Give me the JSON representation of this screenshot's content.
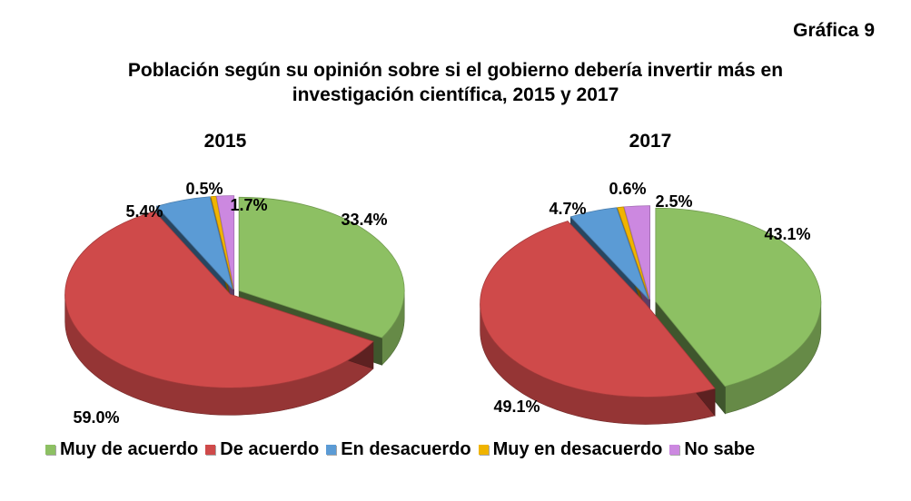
{
  "header": {
    "graph_label": "Gráfica 9",
    "title_line1": "Población según su opinión sobre si el gobierno debería invertir más en",
    "title_line2": "investigación científica, 2015 y 2017"
  },
  "chart_data": [
    {
      "type": "pie",
      "title": "2015",
      "categories": [
        "Muy de acuerdo",
        "De acuerdo",
        "En desacuerdo",
        "Muy en desacuerdo",
        "No sabe"
      ],
      "values": [
        33.4,
        59.0,
        5.4,
        0.5,
        1.7
      ],
      "labels": [
        "33.4%",
        "59.0%",
        "5.4%",
        "0.5%",
        "1.7%"
      ],
      "colors": [
        "#8dc063",
        "#cf4a4a",
        "#5b9bd5",
        "#f0b400",
        "#cc88e0"
      ],
      "legend": "bottom"
    },
    {
      "type": "pie",
      "title": "2017",
      "categories": [
        "Muy de acuerdo",
        "De acuerdo",
        "En desacuerdo",
        "Muy en desacuerdo",
        "No sabe"
      ],
      "values": [
        43.1,
        49.1,
        4.7,
        0.6,
        2.5
      ],
      "labels": [
        "43.1%",
        "49.1%",
        "4.7%",
        "0.6%",
        "2.5%"
      ],
      "colors": [
        "#8dc063",
        "#cf4a4a",
        "#5b9bd5",
        "#f0b400",
        "#cc88e0"
      ],
      "legend": "bottom"
    }
  ],
  "legend": {
    "items": [
      {
        "label": "Muy de acuerdo",
        "color": "#8dc063"
      },
      {
        "label": "De acuerdo",
        "color": "#cf4a4a"
      },
      {
        "label": "En desacuerdo",
        "color": "#5b9bd5"
      },
      {
        "label": "Muy en desacuerdo",
        "color": "#f0b400"
      },
      {
        "label": "No sabe",
        "color": "#cc88e0"
      }
    ]
  }
}
